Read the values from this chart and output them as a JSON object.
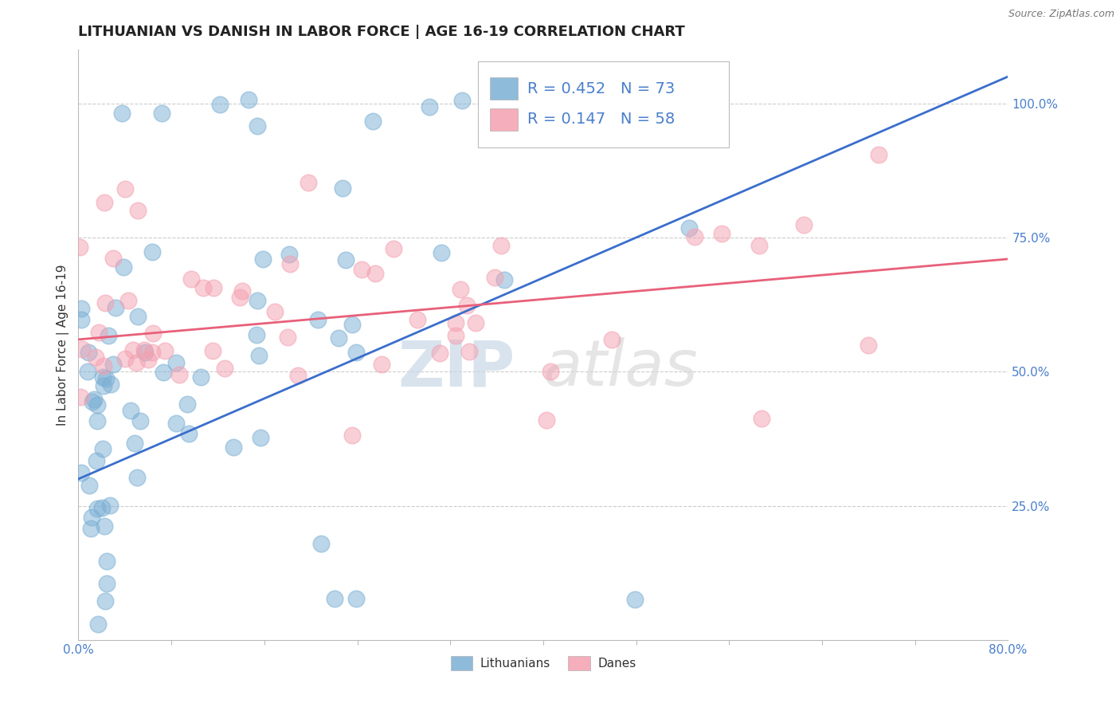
{
  "title": "LITHUANIAN VS DANISH IN LABOR FORCE | AGE 16-19 CORRELATION CHART",
  "source": "Source: ZipAtlas.com",
  "ylabel": "In Labor Force | Age 16-19",
  "xlim": [
    0.0,
    0.8
  ],
  "ylim": [
    0.0,
    1.1
  ],
  "yticks": [
    0.25,
    0.5,
    0.75,
    1.0
  ],
  "yticklabels": [
    "25.0%",
    "50.0%",
    "75.0%",
    "100.0%"
  ],
  "lithuanian_R": 0.452,
  "lithuanian_N": 73,
  "danish_R": 0.147,
  "danish_N": 58,
  "lithuanian_color": "#7BAFD4",
  "danish_color": "#F4A0B0",
  "line_blue": "#3B6ECC",
  "line_pink": "#E8607A",
  "tick_color": "#4A7FCC",
  "background_color": "#FFFFFF",
  "grid_color": "#CCCCCC",
  "watermark_zip": "ZIP",
  "watermark_atlas": "atlas",
  "legend_labels": [
    "Lithuanians",
    "Danes"
  ],
  "title_fontsize": 13,
  "axis_label_fontsize": 11,
  "tick_fontsize": 11,
  "leg_fontsize": 14,
  "blue_line_x0": 0.0,
  "blue_line_y0": 0.3,
  "blue_line_x1": 0.8,
  "blue_line_y1": 1.05,
  "pink_line_x0": 0.0,
  "pink_line_y0": 0.56,
  "pink_line_x1": 0.8,
  "pink_line_y1": 0.71
}
